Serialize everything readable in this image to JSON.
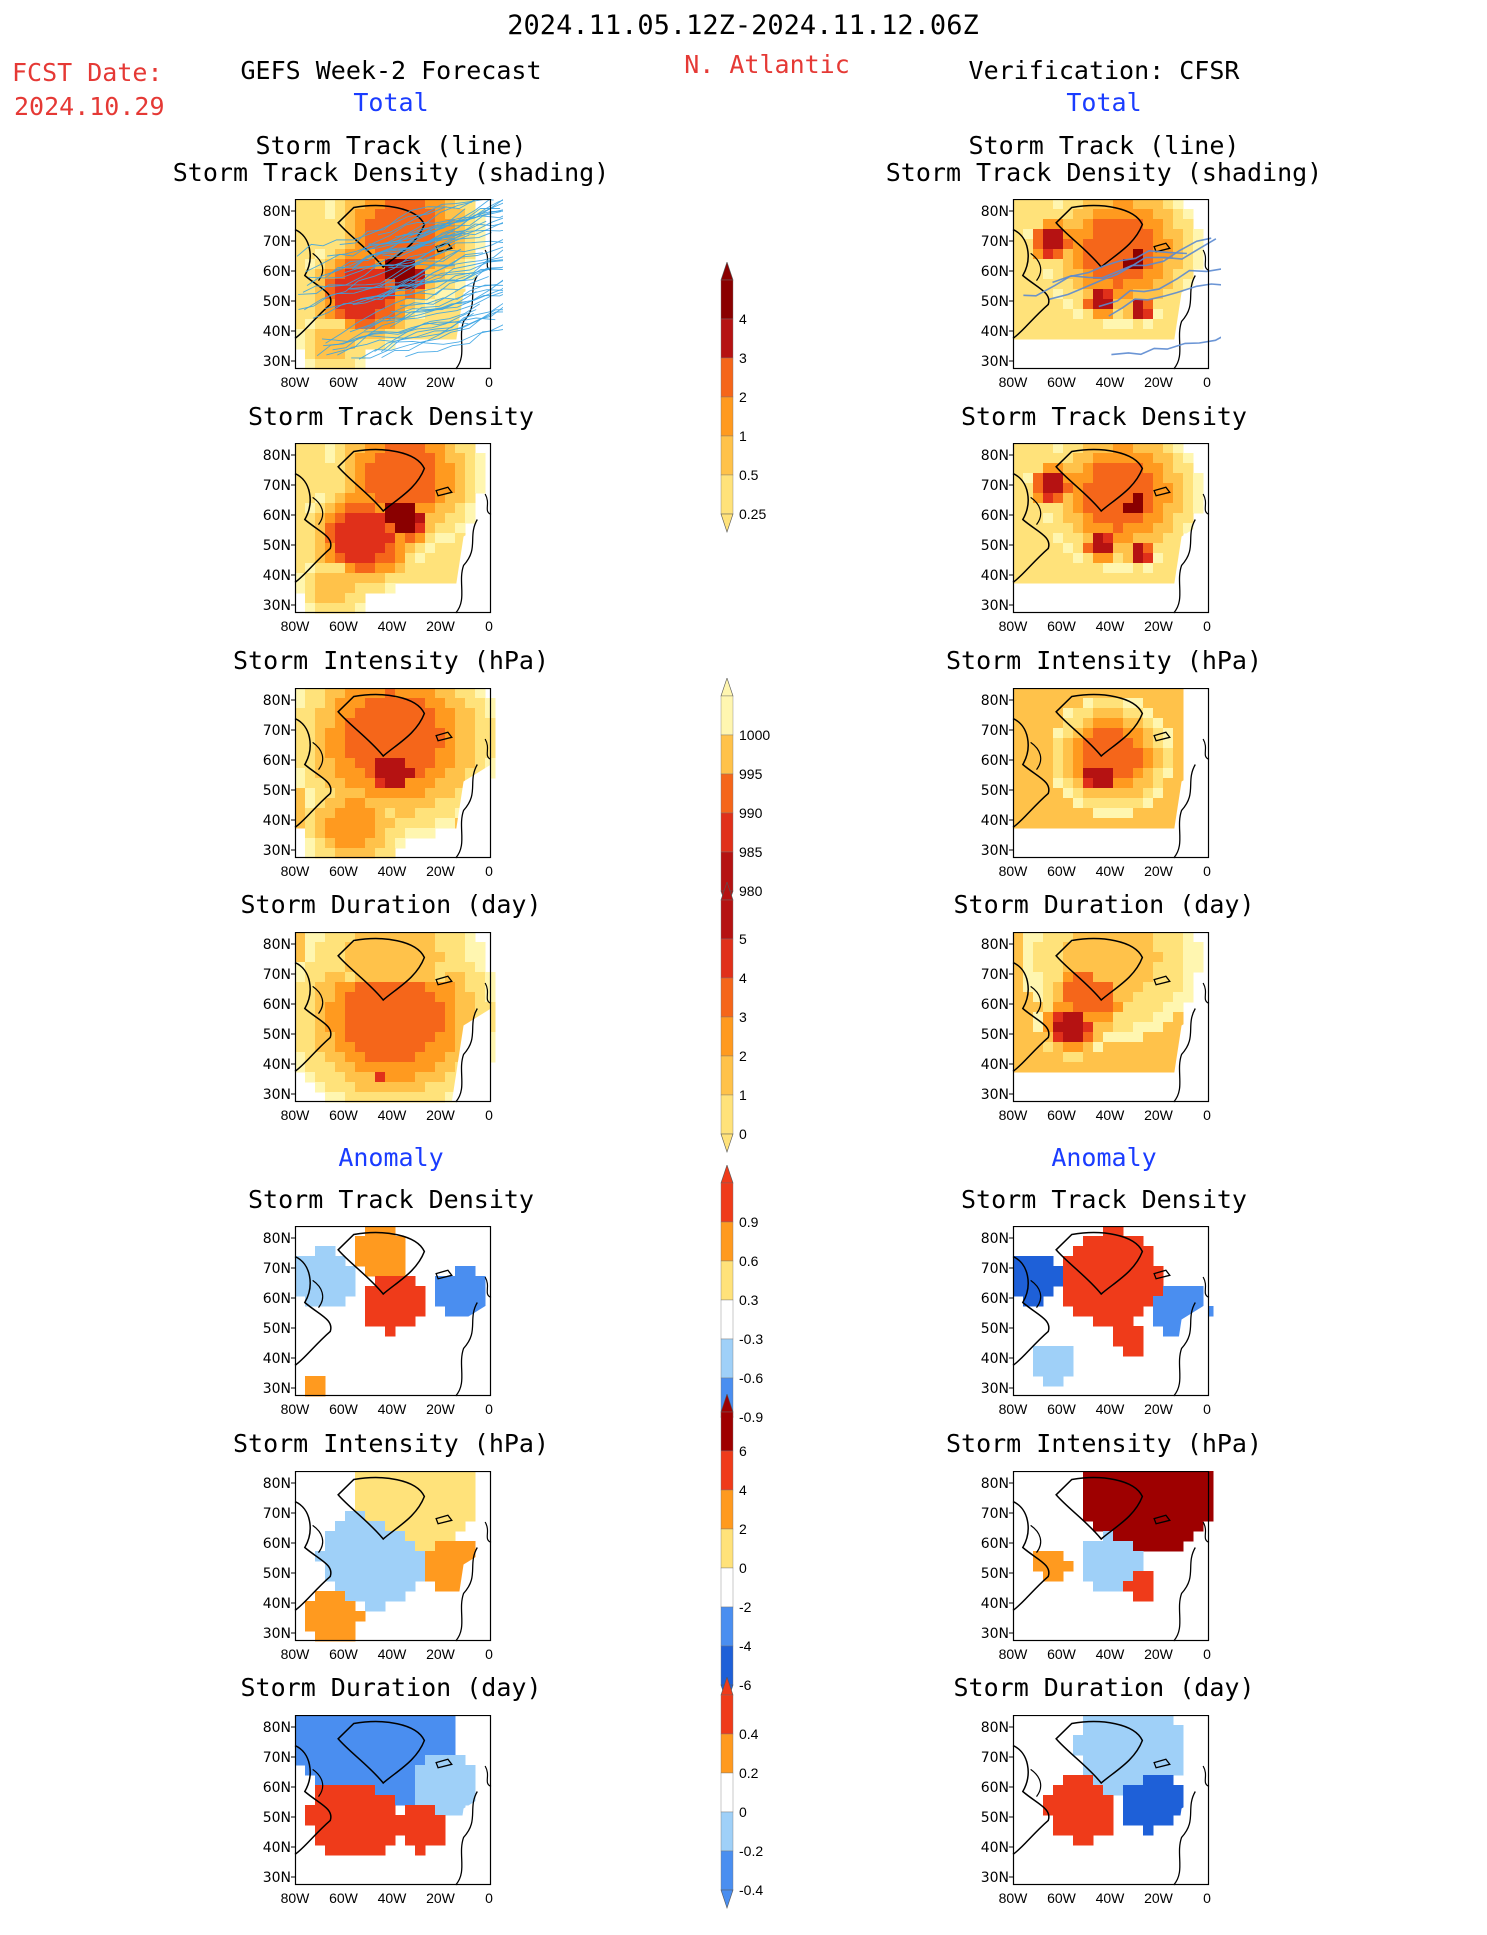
{
  "header": {
    "period": "2024.11.05.12Z-2024.11.12.06Z",
    "fcst_label": "FCST Date:",
    "fcst_date": "2024.10.29",
    "forecast_title": "GEFS Week-2 Forecast",
    "region": "N. Atlantic",
    "verification_title": "Verification: CFSR",
    "total_label": "Total",
    "anomaly_label": "Anomaly"
  },
  "panel_titles": {
    "track_line": "Storm Track (line)",
    "track_shading": "Storm Track Density (shading)",
    "track_density": "Storm Track Density",
    "intensity": "Storm Intensity (hPa)",
    "duration": "Storm Duration (day)"
  },
  "axes": {
    "lat_ticks": [
      "80N",
      "70N",
      "60N",
      "50N",
      "40N",
      "30N"
    ],
    "lon_ticks": [
      "80W",
      "60W",
      "40W",
      "20W",
      "0"
    ]
  },
  "colorbars": {
    "density_total": [
      "4",
      "3",
      "2",
      "1",
      "0.5",
      "0.25"
    ],
    "intensity_total": [
      "1000",
      "995",
      "990",
      "985",
      "980"
    ],
    "duration_total": [
      "5",
      "4",
      "3",
      "2",
      "1",
      "0"
    ],
    "density_anom": [
      "0.9",
      "0.6",
      "0.3",
      "-0.3",
      "-0.6",
      "-0.9"
    ],
    "intensity_anom": [
      "6",
      "4",
      "2",
      "0",
      "-2",
      "-4",
      "-6"
    ],
    "duration_anom": [
      "0.4",
      "0.2",
      "0",
      "-0.2",
      "-0.4"
    ]
  },
  "colors": {
    "title_red": "#e53935",
    "label_blue": "#1a3cff",
    "warm_scale": [
      "#fff6b0",
      "#ffe27a",
      "#ffc24a",
      "#ff9a1f",
      "#f5661a",
      "#e0301a",
      "#b51212",
      "#8a0000"
    ],
    "anom_scale": [
      "#1e60d8",
      "#4a8ef0",
      "#9fd0f8",
      "#ffffff",
      "#ffe27a",
      "#ff9a1f",
      "#ef3b1a",
      "#9e0000"
    ],
    "track_line_gefs": "#3aa3e3",
    "track_line_cfsr": "#5b8ad0"
  },
  "chart_data": [
    {
      "type": "heatmap",
      "column": "GEFS Week-2 Forecast",
      "group": "Total",
      "title": "Storm Track (line) / Storm Track Density (shading)"
    },
    {
      "type": "heatmap",
      "column": "Verification: CFSR",
      "group": "Total",
      "title": "Storm Track (line) / Storm Track Density (shading)"
    },
    {
      "type": "heatmap",
      "column": "GEFS Week-2 Forecast",
      "group": "Total",
      "title": "Storm Track Density"
    },
    {
      "type": "heatmap",
      "column": "Verification: CFSR",
      "group": "Total",
      "title": "Storm Track Density"
    },
    {
      "type": "heatmap",
      "column": "GEFS Week-2 Forecast",
      "group": "Total",
      "title": "Storm Intensity (hPa)"
    },
    {
      "type": "heatmap",
      "column": "Verification: CFSR",
      "group": "Total",
      "title": "Storm Intensity (hPa)"
    },
    {
      "type": "heatmap",
      "column": "GEFS Week-2 Forecast",
      "group": "Total",
      "title": "Storm Duration (day)"
    },
    {
      "type": "heatmap",
      "column": "Verification: CFSR",
      "group": "Total",
      "title": "Storm Duration (day)"
    },
    {
      "type": "heatmap",
      "column": "GEFS Week-2 Forecast",
      "group": "Anomaly",
      "title": "Storm Track Density"
    },
    {
      "type": "heatmap",
      "column": "Verification: CFSR",
      "group": "Anomaly",
      "title": "Storm Track Density"
    },
    {
      "type": "heatmap",
      "column": "GEFS Week-2 Forecast",
      "group": "Anomaly",
      "title": "Storm Intensity (hPa)"
    },
    {
      "type": "heatmap",
      "column": "Verification: CFSR",
      "group": "Anomaly",
      "title": "Storm Intensity (hPa)"
    },
    {
      "type": "heatmap",
      "column": "GEFS Week-2 Forecast",
      "group": "Anomaly",
      "title": "Storm Duration (day)"
    },
    {
      "type": "heatmap",
      "column": "Verification: CFSR",
      "group": "Anomaly",
      "title": "Storm Duration (day)"
    }
  ]
}
